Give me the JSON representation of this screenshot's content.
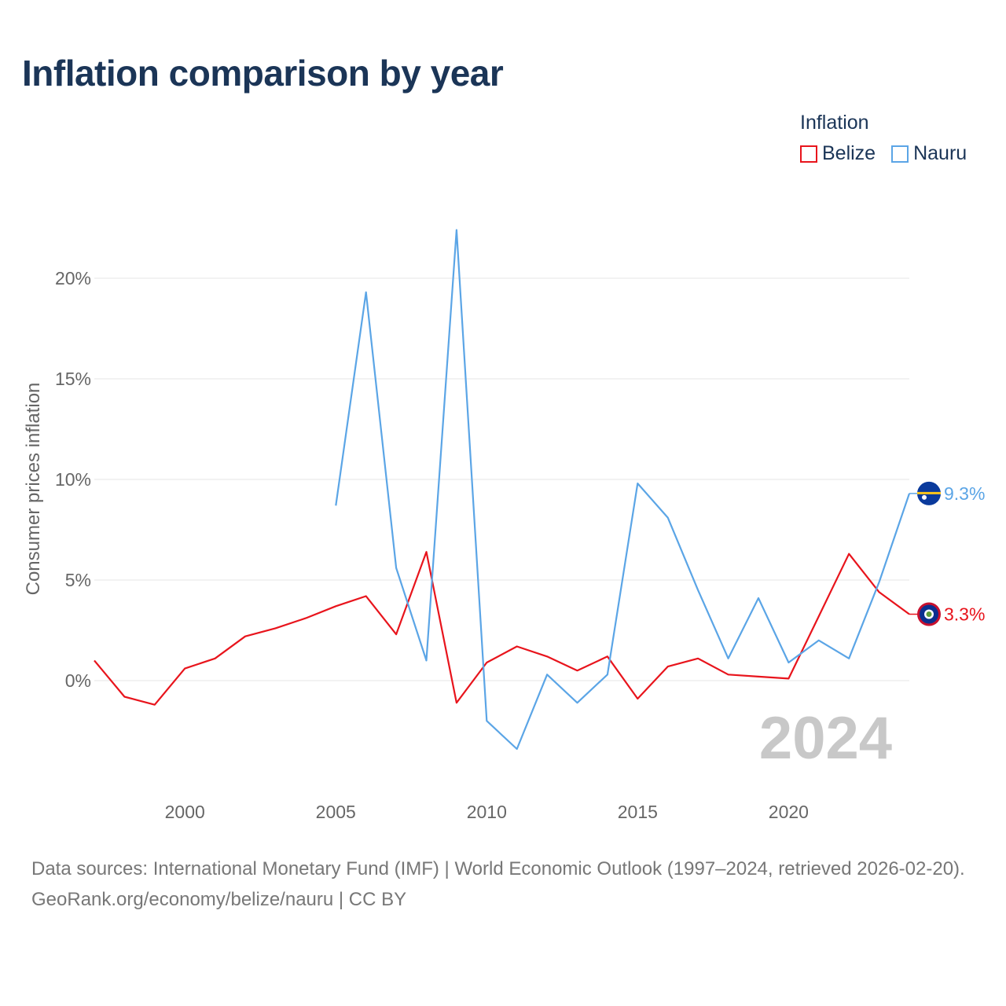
{
  "title": "Inflation comparison by year",
  "legend": {
    "title": "Inflation",
    "items": [
      {
        "label": "Belize",
        "color": "#e8141c"
      },
      {
        "label": "Nauru",
        "color": "#5ba5e6"
      }
    ]
  },
  "footer": {
    "sources": "Data sources: International Monetary Fund (IMF) | World Economic Outlook (1997–2024, retrieved 2026-02-20).",
    "credit": "GeoRank.org/economy/belize/nauru | CC BY"
  },
  "chart_data": {
    "type": "line",
    "title": "Inflation comparison by year",
    "ylabel": "Consumer prices inflation",
    "xlabel": "",
    "xlim": [
      1997,
      2024
    ],
    "ylim": [
      -5,
      23
    ],
    "xticks": [
      2000,
      2005,
      2010,
      2015,
      2020
    ],
    "xtick_labels": [
      "2000",
      "2005",
      "2010",
      "2015",
      "2020"
    ],
    "yticks": [
      0,
      5,
      10,
      15,
      20
    ],
    "ytick_labels": [
      "0%",
      "5%",
      "10%",
      "15%",
      "20%"
    ],
    "year_watermark": "2024",
    "series": [
      {
        "name": "Belize",
        "color": "#e8141c",
        "end_label": "3.3%",
        "flag": "belize-flag-icon",
        "x": [
          1997,
          1998,
          1999,
          2000,
          2001,
          2002,
          2003,
          2004,
          2005,
          2006,
          2007,
          2008,
          2009,
          2010,
          2011,
          2012,
          2013,
          2014,
          2015,
          2016,
          2017,
          2018,
          2019,
          2020,
          2021,
          2022,
          2023,
          2024
        ],
        "values": [
          1.0,
          -0.8,
          -1.2,
          0.6,
          1.1,
          2.2,
          2.6,
          3.1,
          3.7,
          4.2,
          2.3,
          6.4,
          -1.1,
          0.9,
          1.7,
          1.2,
          0.5,
          1.2,
          -0.9,
          0.7,
          1.1,
          0.3,
          0.2,
          0.1,
          3.2,
          6.3,
          4.4,
          3.3
        ]
      },
      {
        "name": "Nauru",
        "color": "#5ba5e6",
        "end_label": "9.3%",
        "flag": "nauru-flag-icon",
        "x": [
          2005,
          2006,
          2007,
          2008,
          2009,
          2010,
          2011,
          2012,
          2013,
          2014,
          2015,
          2016,
          2017,
          2018,
          2019,
          2020,
          2021,
          2022,
          2023,
          2024
        ],
        "values": [
          8.7,
          19.3,
          5.6,
          1.0,
          22.4,
          -2.0,
          -3.4,
          0.3,
          -1.1,
          0.3,
          9.8,
          8.1,
          4.5,
          1.1,
          4.1,
          0.9,
          2.0,
          1.1,
          4.9,
          9.3
        ]
      }
    ]
  }
}
